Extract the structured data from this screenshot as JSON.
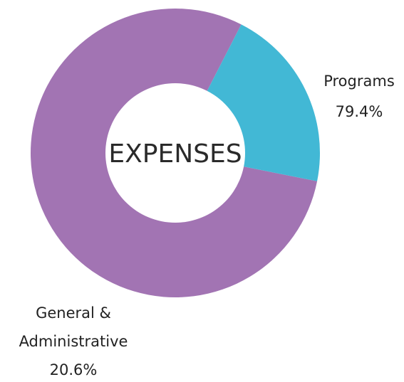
{
  "chart_data": {
    "type": "pie",
    "style": "donut",
    "center_label": "EXPENSES",
    "slices": [
      {
        "name": "Programs",
        "value": 79.4,
        "label": "79.4%",
        "color": "#a274b3"
      },
      {
        "name": "General &",
        "name_line2": "Administrative",
        "value": 20.6,
        "label": "20.6%",
        "color": "#42b8d5"
      }
    ]
  }
}
